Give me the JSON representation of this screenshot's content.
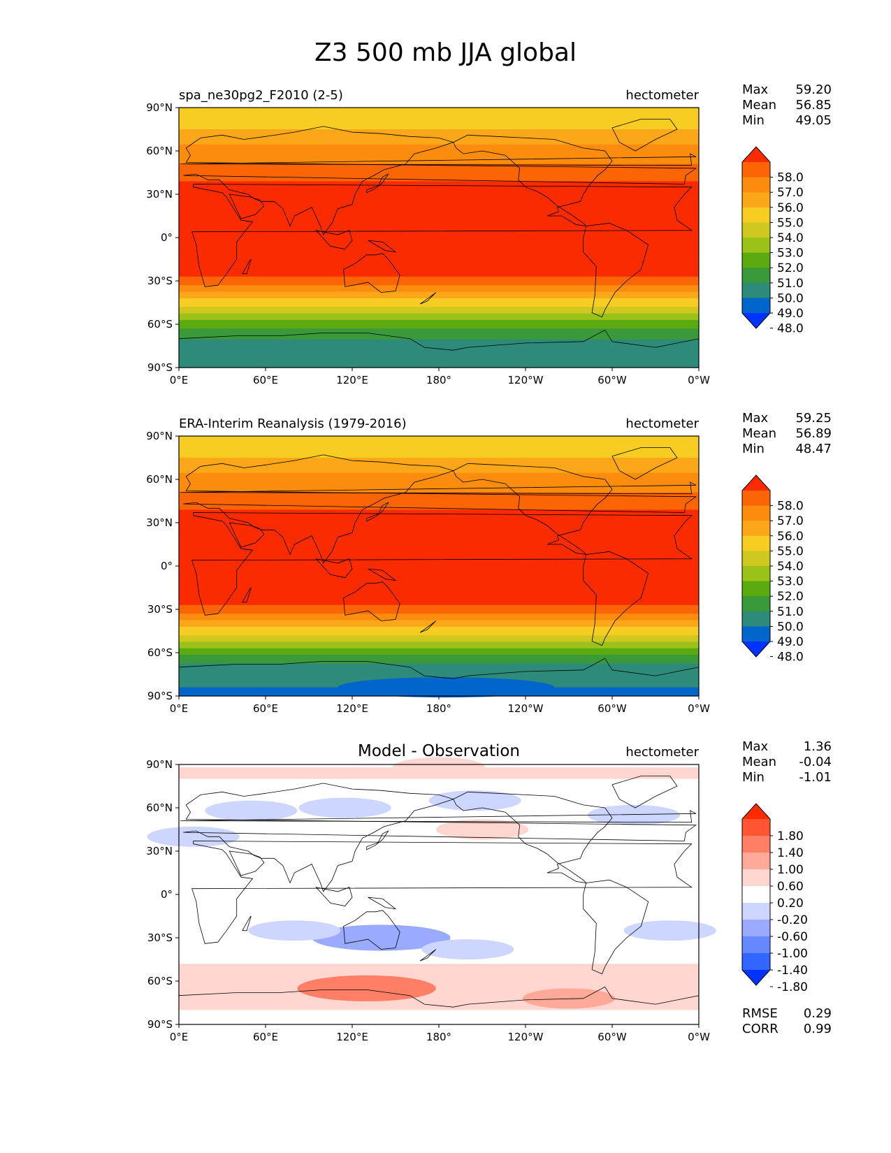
{
  "title": "Z3 500 mb JJA global",
  "colors": {
    "abs_levels": [
      "#0033ff",
      "#0066cc",
      "#2e8b7a",
      "#3a9a3a",
      "#5aaa10",
      "#9ac219",
      "#cfc820",
      "#f7cc23",
      "#fca61a",
      "#fb8c0e",
      "#fb6506",
      "#fb2b00"
    ],
    "diff_levels": [
      "#0033ff",
      "#3366ff",
      "#6688ff",
      "#99aaff",
      "#ccd6ff",
      "#ffffff",
      "#ffd6d0",
      "#ffaa99",
      "#ff7f66",
      "#ff5533",
      "#ff2a00"
    ],
    "land_outline": "#000000"
  },
  "panels": [
    {
      "title": "spa_ne30pg2_F2010 (2-5)",
      "units": "hectometer",
      "stats": {
        "max_label": "Max",
        "max": "59.20",
        "mean_label": "Mean",
        "mean": "56.85",
        "min_label": "Min",
        "min": "49.05"
      },
      "colorbar_ticks": [
        "58.0",
        "57.0",
        "56.0",
        "55.0",
        "54.0",
        "53.0",
        "52.0",
        "51.0",
        "50.0",
        "49.0",
        "48.0"
      ]
    },
    {
      "title": "ERA-Interim Reanalysis (1979-2016)",
      "units": "hectometer",
      "stats": {
        "max_label": "Max",
        "max": "59.25",
        "mean_label": "Mean",
        "mean": "56.89",
        "min_label": "Min",
        "min": "48.47"
      },
      "colorbar_ticks": [
        "58.0",
        "57.0",
        "56.0",
        "55.0",
        "54.0",
        "53.0",
        "52.0",
        "51.0",
        "50.0",
        "49.0",
        "48.0"
      ]
    },
    {
      "title": "Model - Observation",
      "units": "hectometer",
      "stats": {
        "max_label": "Max",
        "max": "1.36",
        "mean_label": "Mean",
        "mean": "-0.04",
        "min_label": "Min",
        "min": "-1.01"
      },
      "colorbar_ticks": [
        "1.80",
        "1.40",
        "1.00",
        "0.60",
        "0.20",
        "-0.20",
        "-0.60",
        "-1.00",
        "-1.40",
        "-1.80"
      ],
      "rmse_label": "RMSE",
      "rmse": "0.29",
      "corr_label": "CORR",
      "corr": "0.99"
    }
  ],
  "chart_data": {
    "type": "heatmap",
    "title": "Z3 500 mb JJA global",
    "x_ticks": [
      "0°E",
      "60°E",
      "120°E",
      "180°",
      "120°W",
      "60°W",
      "0°W"
    ],
    "y_ticks": [
      "90°N",
      "60°N",
      "30°N",
      "0°",
      "30°S",
      "60°S",
      "90°S"
    ],
    "xlim": [
      0,
      360
    ],
    "ylim": [
      -90,
      90
    ],
    "zonal_profile_model": [
      {
        "lat": 90,
        "value": 54.5
      },
      {
        "lat": 75,
        "value": 55.0
      },
      {
        "lat": 65,
        "value": 56.0
      },
      {
        "lat": 55,
        "value": 56.6
      },
      {
        "lat": 45,
        "value": 57.5
      },
      {
        "lat": 30,
        "value": 58.8
      },
      {
        "lat": 0,
        "value": 59.1
      },
      {
        "lat": -25,
        "value": 58.5
      },
      {
        "lat": -35,
        "value": 56.5
      },
      {
        "lat": -45,
        "value": 54.5
      },
      {
        "lat": -55,
        "value": 52.5
      },
      {
        "lat": -65,
        "value": 50.5
      },
      {
        "lat": -75,
        "value": 49.6
      },
      {
        "lat": -90,
        "value": 49.5
      }
    ],
    "zonal_profile_obs": [
      {
        "lat": 90,
        "value": 54.5
      },
      {
        "lat": 75,
        "value": 55.0
      },
      {
        "lat": 65,
        "value": 56.0
      },
      {
        "lat": 55,
        "value": 56.6
      },
      {
        "lat": 45,
        "value": 57.5
      },
      {
        "lat": 30,
        "value": 58.8
      },
      {
        "lat": 0,
        "value": 59.1
      },
      {
        "lat": -25,
        "value": 58.5
      },
      {
        "lat": -35,
        "value": 56.5
      },
      {
        "lat": -45,
        "value": 54.5
      },
      {
        "lat": -55,
        "value": 52.3
      },
      {
        "lat": -65,
        "value": 50.2
      },
      {
        "lat": -75,
        "value": 49.3
      },
      {
        "lat": -90,
        "value": 48.8
      }
    ],
    "diff_regions": [
      {
        "lon": 50,
        "lat": 58,
        "value": -0.4
      },
      {
        "lon": 115,
        "lat": 60,
        "value": -0.4
      },
      {
        "lon": 205,
        "lat": 65,
        "value": -0.6
      },
      {
        "lon": 315,
        "lat": 55,
        "value": -0.4
      },
      {
        "lon": 210,
        "lat": 45,
        "value": 0.4
      },
      {
        "lon": 10,
        "lat": 40,
        "value": -0.4
      },
      {
        "lon": 140,
        "lat": -30,
        "value": -1.0
      },
      {
        "lon": 200,
        "lat": -38,
        "value": -0.4
      },
      {
        "lon": 80,
        "lat": -25,
        "value": -0.4
      },
      {
        "lon": 340,
        "lat": -25,
        "value": -0.4
      },
      {
        "lon": 130,
        "lat": -65,
        "value": 1.2
      },
      {
        "lon": 270,
        "lat": -72,
        "value": 0.8
      },
      {
        "lon": 180,
        "lat": 88,
        "value": 0.3
      }
    ]
  }
}
